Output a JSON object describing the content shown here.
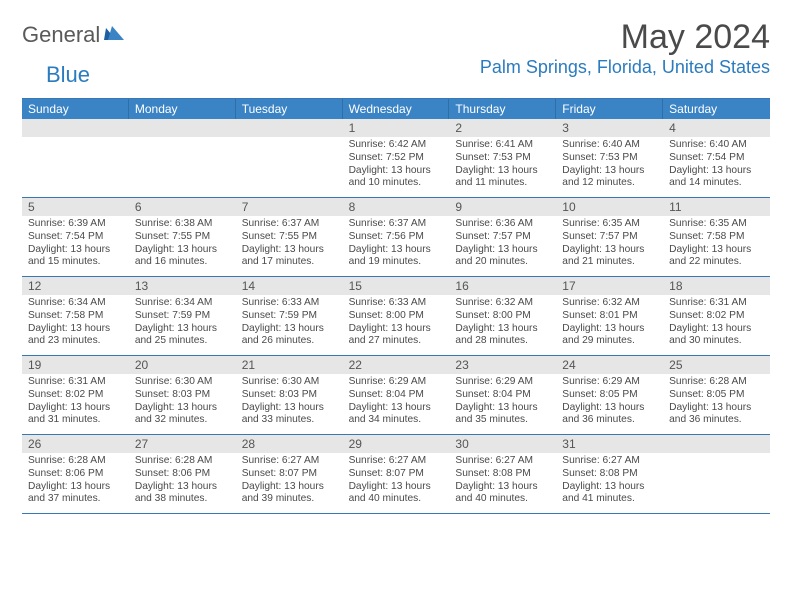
{
  "logo": {
    "general": "General",
    "blue": "Blue"
  },
  "title": "May 2024",
  "location": "Palm Springs, Florida, United States",
  "colors": {
    "header_bg": "#3a83c5",
    "header_text": "#ffffff",
    "border": "#3a78b5",
    "daynum_bg": "#e6e6e6",
    "text": "#4a4a4a",
    "accent": "#2b7bbf"
  },
  "dayHeaders": [
    "Sunday",
    "Monday",
    "Tuesday",
    "Wednesday",
    "Thursday",
    "Friday",
    "Saturday"
  ],
  "weeks": [
    [
      {
        "n": "",
        "sr": "",
        "ss": "",
        "dl": ""
      },
      {
        "n": "",
        "sr": "",
        "ss": "",
        "dl": ""
      },
      {
        "n": "",
        "sr": "",
        "ss": "",
        "dl": ""
      },
      {
        "n": "1",
        "sr": "Sunrise: 6:42 AM",
        "ss": "Sunset: 7:52 PM",
        "dl": "Daylight: 13 hours and 10 minutes."
      },
      {
        "n": "2",
        "sr": "Sunrise: 6:41 AM",
        "ss": "Sunset: 7:53 PM",
        "dl": "Daylight: 13 hours and 11 minutes."
      },
      {
        "n": "3",
        "sr": "Sunrise: 6:40 AM",
        "ss": "Sunset: 7:53 PM",
        "dl": "Daylight: 13 hours and 12 minutes."
      },
      {
        "n": "4",
        "sr": "Sunrise: 6:40 AM",
        "ss": "Sunset: 7:54 PM",
        "dl": "Daylight: 13 hours and 14 minutes."
      }
    ],
    [
      {
        "n": "5",
        "sr": "Sunrise: 6:39 AM",
        "ss": "Sunset: 7:54 PM",
        "dl": "Daylight: 13 hours and 15 minutes."
      },
      {
        "n": "6",
        "sr": "Sunrise: 6:38 AM",
        "ss": "Sunset: 7:55 PM",
        "dl": "Daylight: 13 hours and 16 minutes."
      },
      {
        "n": "7",
        "sr": "Sunrise: 6:37 AM",
        "ss": "Sunset: 7:55 PM",
        "dl": "Daylight: 13 hours and 17 minutes."
      },
      {
        "n": "8",
        "sr": "Sunrise: 6:37 AM",
        "ss": "Sunset: 7:56 PM",
        "dl": "Daylight: 13 hours and 19 minutes."
      },
      {
        "n": "9",
        "sr": "Sunrise: 6:36 AM",
        "ss": "Sunset: 7:57 PM",
        "dl": "Daylight: 13 hours and 20 minutes."
      },
      {
        "n": "10",
        "sr": "Sunrise: 6:35 AM",
        "ss": "Sunset: 7:57 PM",
        "dl": "Daylight: 13 hours and 21 minutes."
      },
      {
        "n": "11",
        "sr": "Sunrise: 6:35 AM",
        "ss": "Sunset: 7:58 PM",
        "dl": "Daylight: 13 hours and 22 minutes."
      }
    ],
    [
      {
        "n": "12",
        "sr": "Sunrise: 6:34 AM",
        "ss": "Sunset: 7:58 PM",
        "dl": "Daylight: 13 hours and 23 minutes."
      },
      {
        "n": "13",
        "sr": "Sunrise: 6:34 AM",
        "ss": "Sunset: 7:59 PM",
        "dl": "Daylight: 13 hours and 25 minutes."
      },
      {
        "n": "14",
        "sr": "Sunrise: 6:33 AM",
        "ss": "Sunset: 7:59 PM",
        "dl": "Daylight: 13 hours and 26 minutes."
      },
      {
        "n": "15",
        "sr": "Sunrise: 6:33 AM",
        "ss": "Sunset: 8:00 PM",
        "dl": "Daylight: 13 hours and 27 minutes."
      },
      {
        "n": "16",
        "sr": "Sunrise: 6:32 AM",
        "ss": "Sunset: 8:00 PM",
        "dl": "Daylight: 13 hours and 28 minutes."
      },
      {
        "n": "17",
        "sr": "Sunrise: 6:32 AM",
        "ss": "Sunset: 8:01 PM",
        "dl": "Daylight: 13 hours and 29 minutes."
      },
      {
        "n": "18",
        "sr": "Sunrise: 6:31 AM",
        "ss": "Sunset: 8:02 PM",
        "dl": "Daylight: 13 hours and 30 minutes."
      }
    ],
    [
      {
        "n": "19",
        "sr": "Sunrise: 6:31 AM",
        "ss": "Sunset: 8:02 PM",
        "dl": "Daylight: 13 hours and 31 minutes."
      },
      {
        "n": "20",
        "sr": "Sunrise: 6:30 AM",
        "ss": "Sunset: 8:03 PM",
        "dl": "Daylight: 13 hours and 32 minutes."
      },
      {
        "n": "21",
        "sr": "Sunrise: 6:30 AM",
        "ss": "Sunset: 8:03 PM",
        "dl": "Daylight: 13 hours and 33 minutes."
      },
      {
        "n": "22",
        "sr": "Sunrise: 6:29 AM",
        "ss": "Sunset: 8:04 PM",
        "dl": "Daylight: 13 hours and 34 minutes."
      },
      {
        "n": "23",
        "sr": "Sunrise: 6:29 AM",
        "ss": "Sunset: 8:04 PM",
        "dl": "Daylight: 13 hours and 35 minutes."
      },
      {
        "n": "24",
        "sr": "Sunrise: 6:29 AM",
        "ss": "Sunset: 8:05 PM",
        "dl": "Daylight: 13 hours and 36 minutes."
      },
      {
        "n": "25",
        "sr": "Sunrise: 6:28 AM",
        "ss": "Sunset: 8:05 PM",
        "dl": "Daylight: 13 hours and 36 minutes."
      }
    ],
    [
      {
        "n": "26",
        "sr": "Sunrise: 6:28 AM",
        "ss": "Sunset: 8:06 PM",
        "dl": "Daylight: 13 hours and 37 minutes."
      },
      {
        "n": "27",
        "sr": "Sunrise: 6:28 AM",
        "ss": "Sunset: 8:06 PM",
        "dl": "Daylight: 13 hours and 38 minutes."
      },
      {
        "n": "28",
        "sr": "Sunrise: 6:27 AM",
        "ss": "Sunset: 8:07 PM",
        "dl": "Daylight: 13 hours and 39 minutes."
      },
      {
        "n": "29",
        "sr": "Sunrise: 6:27 AM",
        "ss": "Sunset: 8:07 PM",
        "dl": "Daylight: 13 hours and 40 minutes."
      },
      {
        "n": "30",
        "sr": "Sunrise: 6:27 AM",
        "ss": "Sunset: 8:08 PM",
        "dl": "Daylight: 13 hours and 40 minutes."
      },
      {
        "n": "31",
        "sr": "Sunrise: 6:27 AM",
        "ss": "Sunset: 8:08 PM",
        "dl": "Daylight: 13 hours and 41 minutes."
      },
      {
        "n": "",
        "sr": "",
        "ss": "",
        "dl": ""
      }
    ]
  ]
}
